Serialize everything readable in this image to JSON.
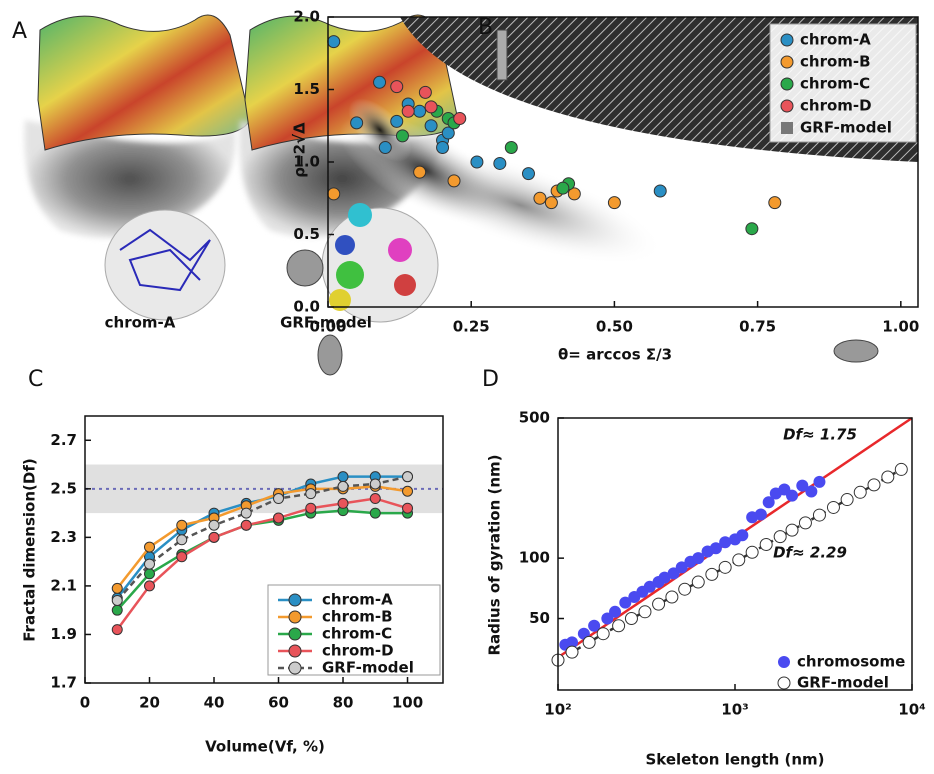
{
  "panel_a": {
    "label": "A",
    "captions": [
      "chrom-A",
      "GRF-model"
    ]
  },
  "chart_data": [
    {
      "panel": "B",
      "type": "scatter",
      "xlabel": "θ= arccos Σ/3",
      "ylabel": "ρ=2√Δ",
      "xlim": [
        0,
        1.03
      ],
      "ylim": [
        0,
        2.0
      ],
      "xticks": [
        {
          "value": 0,
          "label": "0.00"
        },
        {
          "value": 0.25,
          "label": "0.25"
        },
        {
          "value": 0.5,
          "label": "0.50"
        },
        {
          "value": 0.75,
          "label": "0.75"
        },
        {
          "value": 1,
          "label": "1.00"
        }
      ],
      "yticks": [
        {
          "value": 0,
          "label": "0.0"
        },
        0.5,
        {
          "value": 1,
          "label": "1.0"
        },
        1.5,
        {
          "value": 2,
          "label": "2.0"
        }
      ],
      "legend": "upper right",
      "density": {
        "name": "GRF-model",
        "color": "#777777"
      },
      "series": [
        {
          "name": "chrom-A",
          "color": "#2a8fc4",
          "x": [
            0.01,
            0.09,
            0.05,
            0.1,
            0.14,
            0.16,
            0.18,
            0.2,
            0.21,
            0.2,
            0.26,
            0.3,
            0.35,
            0.58,
            0.12
          ],
          "values": [
            1.83,
            1.55,
            1.27,
            1.1,
            1.4,
            1.35,
            1.25,
            1.15,
            1.2,
            1.1,
            1.0,
            0.99,
            0.92,
            0.8,
            1.28
          ]
        },
        {
          "name": "chrom-B",
          "color": "#f39a2e",
          "x": [
            0.01,
            0.16,
            0.22,
            0.37,
            0.39,
            0.4,
            0.43,
            0.5,
            0.78
          ],
          "values": [
            0.78,
            0.93,
            0.87,
            0.75,
            0.72,
            0.8,
            0.78,
            0.72,
            0.72
          ]
        },
        {
          "name": "chrom-C",
          "color": "#2aa84a",
          "x": [
            0.13,
            0.19,
            0.21,
            0.22,
            0.32,
            0.42,
            0.41,
            0.74
          ],
          "values": [
            1.18,
            1.35,
            1.3,
            1.27,
            1.1,
            0.85,
            0.82,
            0.54
          ]
        },
        {
          "name": "chrom-D",
          "color": "#e8545a",
          "x": [
            0.12,
            0.17,
            0.18,
            0.14,
            0.23
          ],
          "values": [
            1.52,
            1.48,
            1.38,
            1.35,
            1.3
          ]
        }
      ]
    },
    {
      "panel": "C",
      "type": "line",
      "xlabel": "Volume(Vf, %)",
      "ylabel": "Fractal dimension(Df)",
      "xlim": [
        0,
        111
      ],
      "ylim": [
        1.7,
        2.8
      ],
      "xticks": [
        0,
        20,
        40,
        60,
        80,
        100
      ],
      "yticks": [
        1.7,
        1.9,
        2.1,
        2.3,
        2.5,
        2.7
      ],
      "shaded_band": [
        2.4,
        2.6
      ],
      "shaded_color": "#e0e0e0",
      "reference_line": 2.5,
      "reference_color": "#6b6bb8",
      "legend": "lower right",
      "x": [
        10,
        20,
        30,
        40,
        50,
        60,
        70,
        80,
        90,
        100
      ],
      "series": [
        {
          "name": "chrom-A",
          "color": "#2a8fc4",
          "values": [
            2.05,
            2.22,
            2.33,
            2.4,
            2.44,
            2.47,
            2.52,
            2.55,
            2.55,
            2.55
          ]
        },
        {
          "name": "chrom-B",
          "color": "#f39a2e",
          "values": [
            2.09,
            2.26,
            2.35,
            2.38,
            2.43,
            2.48,
            2.5,
            2.5,
            2.51,
            2.49
          ]
        },
        {
          "name": "chrom-C",
          "color": "#2aa84a",
          "values": [
            2.0,
            2.15,
            2.23,
            2.3,
            2.35,
            2.37,
            2.4,
            2.41,
            2.4,
            2.4
          ]
        },
        {
          "name": "chrom-D",
          "color": "#e8545a",
          "values": [
            1.92,
            2.1,
            2.22,
            2.3,
            2.35,
            2.38,
            2.42,
            2.44,
            2.46,
            2.42
          ]
        },
        {
          "name": "GRF-model",
          "color": "#555555",
          "marker_color": "#cccccc",
          "style": "dashed",
          "values": [
            2.04,
            2.19,
            2.29,
            2.35,
            2.4,
            2.46,
            2.48,
            2.51,
            2.52,
            2.55
          ]
        }
      ]
    },
    {
      "panel": "D",
      "type": "scatter",
      "xlabel": "Skeleton length (nm)",
      "ylabel": "Radius of gyration (nm)",
      "xscale": "log",
      "yscale": "log",
      "xlim": [
        100,
        10000
      ],
      "ylim": [
        22,
        500
      ],
      "xticks": [
        {
          "value": 100,
          "label": "10²"
        },
        {
          "value": 1000,
          "label": "10³"
        },
        {
          "value": 10000,
          "label": "10⁴"
        }
      ],
      "yticks": [
        50,
        100,
        500
      ],
      "legend": "lower right",
      "annotations": [
        "Df≈ 1.75",
        "Df≈ 2.29"
      ],
      "fit_line": {
        "color": "#e8282b",
        "x": [
          100,
          10000
        ],
        "values": [
          32,
          500
        ]
      },
      "series": [
        {
          "name": "chromosome",
          "color": "#4a4af0",
          "marker": "filled",
          "x": [
            100,
            110,
            120,
            140,
            160,
            190,
            210,
            240,
            270,
            300,
            330,
            370,
            400,
            450,
            500,
            560,
            620,
            700,
            780,
            880,
            1000,
            1100,
            1250,
            1400,
            1550,
            1700,
            1900,
            2100,
            2400,
            2700,
            3000
          ],
          "values": [
            31,
            37,
            38,
            42,
            46,
            50,
            54,
            60,
            64,
            68,
            72,
            76,
            80,
            84,
            90,
            96,
            100,
            108,
            112,
            120,
            124,
            130,
            160,
            165,
            190,
            210,
            220,
            205,
            230,
            215,
            240
          ]
        },
        {
          "name": "GRF-model",
          "color": "#333333",
          "marker": "open",
          "style": "dashed",
          "x": [
            100,
            120,
            150,
            180,
            220,
            260,
            310,
            370,
            440,
            520,
            620,
            740,
            880,
            1050,
            1250,
            1500,
            1800,
            2100,
            2500,
            3000,
            3600,
            4300,
            5100,
            6100,
            7300,
            8700
          ],
          "values": [
            31,
            34,
            38,
            42,
            46,
            50,
            54,
            59,
            64,
            70,
            76,
            83,
            90,
            98,
            107,
            117,
            128,
            138,
            150,
            164,
            179,
            196,
            213,
            232,
            254,
            277
          ]
        }
      ]
    }
  ]
}
